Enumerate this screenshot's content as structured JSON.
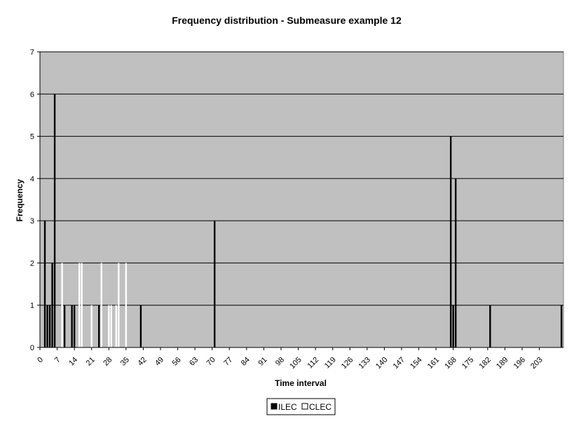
{
  "chart_data": {
    "type": "bar",
    "title": "Frequency distribution - Submeasure example 12",
    "xlabel": "Time interval",
    "ylabel": "Frequency",
    "ylim": [
      0,
      7
    ],
    "xlim": [
      0,
      210
    ],
    "yticks": [
      0,
      1,
      2,
      3,
      4,
      5,
      6,
      7
    ],
    "xticks": [
      0,
      7,
      14,
      21,
      28,
      35,
      42,
      49,
      56,
      63,
      70,
      77,
      84,
      91,
      98,
      105,
      112,
      119,
      126,
      133,
      140,
      147,
      154,
      161,
      168,
      175,
      182,
      189,
      196,
      203
    ],
    "grid": "horizontal",
    "legend_position": "bottom",
    "series": [
      {
        "name": "ILEC",
        "color": "#000000",
        "points": [
          {
            "x": 2,
            "y": 3
          },
          {
            "x": 3,
            "y": 1
          },
          {
            "x": 4,
            "y": 1
          },
          {
            "x": 5,
            "y": 2
          },
          {
            "x": 6,
            "y": 6
          },
          {
            "x": 10,
            "y": 1
          },
          {
            "x": 13,
            "y": 1
          },
          {
            "x": 14,
            "y": 1
          },
          {
            "x": 24,
            "y": 1
          },
          {
            "x": 41,
            "y": 1
          },
          {
            "x": 71,
            "y": 3
          },
          {
            "x": 167,
            "y": 5
          },
          {
            "x": 168,
            "y": 1
          },
          {
            "x": 169,
            "y": 4
          },
          {
            "x": 183,
            "y": 1
          },
          {
            "x": 212,
            "y": 1
          }
        ]
      },
      {
        "name": "CLEC",
        "color": "#ffffff",
        "points": [
          {
            "x": 9,
            "y": 2
          },
          {
            "x": 16,
            "y": 2
          },
          {
            "x": 17,
            "y": 2
          },
          {
            "x": 21,
            "y": 1
          },
          {
            "x": 25,
            "y": 2
          },
          {
            "x": 28,
            "y": 1
          },
          {
            "x": 29,
            "y": 1
          },
          {
            "x": 31,
            "y": 1
          },
          {
            "x": 32,
            "y": 2
          },
          {
            "x": 35,
            "y": 2
          }
        ]
      }
    ]
  }
}
